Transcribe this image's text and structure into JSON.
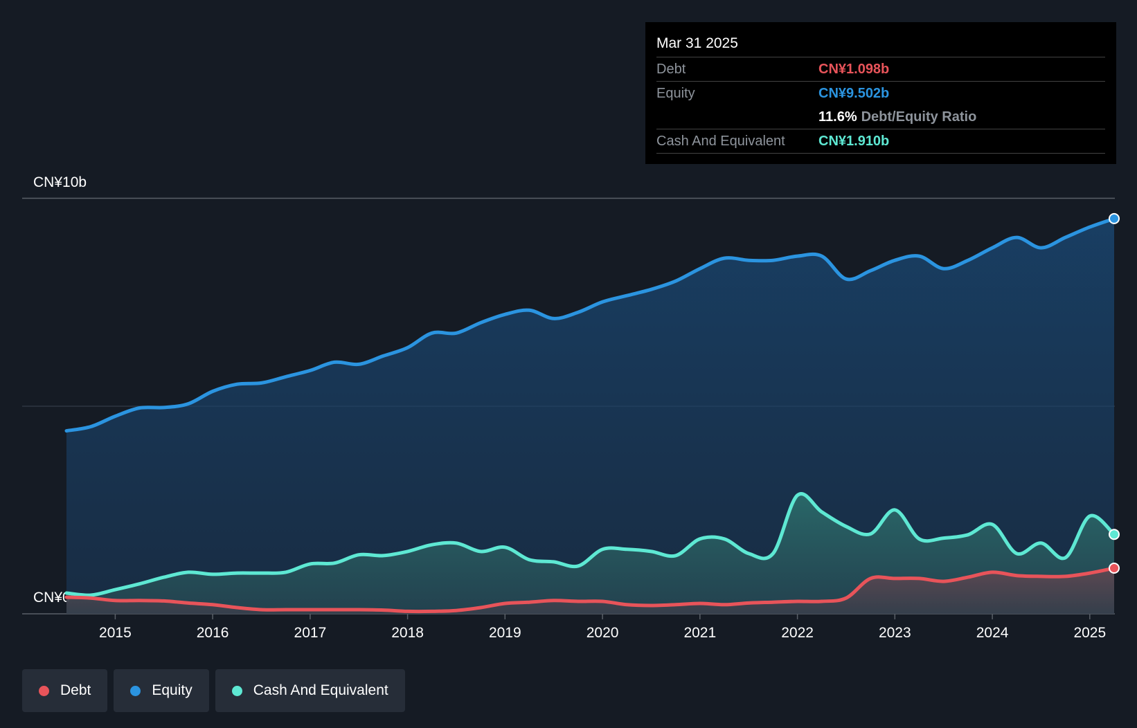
{
  "chart_data": {
    "type": "area",
    "y_axis": {
      "top_label": "CN¥10b",
      "bottom_label": "CN¥0",
      "ylim": [
        0,
        10
      ]
    },
    "x_ticks": [
      "2015",
      "2016",
      "2017",
      "2018",
      "2019",
      "2020",
      "2021",
      "2022",
      "2023",
      "2024",
      "2025"
    ],
    "tick_years": [
      2015,
      2016,
      2017,
      2018,
      2019,
      2020,
      2021,
      2022,
      2023,
      2024,
      2025
    ],
    "xlim": [
      2014.5,
      2025.25
    ],
    "series": [
      {
        "name": "Equity",
        "color": "#2b94e0",
        "points": [
          [
            2014.5,
            4.4
          ],
          [
            2014.75,
            4.5
          ],
          [
            2015.0,
            4.75
          ],
          [
            2015.25,
            4.95
          ],
          [
            2015.5,
            4.96
          ],
          [
            2015.75,
            5.05
          ],
          [
            2016.0,
            5.35
          ],
          [
            2016.25,
            5.52
          ],
          [
            2016.5,
            5.55
          ],
          [
            2016.75,
            5.7
          ],
          [
            2017.0,
            5.85
          ],
          [
            2017.25,
            6.05
          ],
          [
            2017.5,
            6.0
          ],
          [
            2017.75,
            6.2
          ],
          [
            2018.0,
            6.4
          ],
          [
            2018.25,
            6.75
          ],
          [
            2018.5,
            6.75
          ],
          [
            2018.75,
            7.0
          ],
          [
            2019.0,
            7.2
          ],
          [
            2019.25,
            7.3
          ],
          [
            2019.5,
            7.1
          ],
          [
            2019.75,
            7.25
          ],
          [
            2020.0,
            7.5
          ],
          [
            2020.25,
            7.65
          ],
          [
            2020.5,
            7.8
          ],
          [
            2020.75,
            8.0
          ],
          [
            2021.0,
            8.3
          ],
          [
            2021.25,
            8.55
          ],
          [
            2021.5,
            8.5
          ],
          [
            2021.75,
            8.5
          ],
          [
            2022.0,
            8.6
          ],
          [
            2022.25,
            8.6
          ],
          [
            2022.5,
            8.05
          ],
          [
            2022.75,
            8.25
          ],
          [
            2023.0,
            8.5
          ],
          [
            2023.25,
            8.6
          ],
          [
            2023.5,
            8.3
          ],
          [
            2023.75,
            8.5
          ],
          [
            2024.0,
            8.8
          ],
          [
            2024.25,
            9.05
          ],
          [
            2024.5,
            8.8
          ],
          [
            2024.75,
            9.05
          ],
          [
            2025.0,
            9.3
          ],
          [
            2025.25,
            9.502
          ]
        ]
      },
      {
        "name": "Cash And Equivalent",
        "color": "#5ee8d3",
        "points": [
          [
            2014.5,
            0.5
          ],
          [
            2014.75,
            0.45
          ],
          [
            2015.0,
            0.58
          ],
          [
            2015.25,
            0.72
          ],
          [
            2015.5,
            0.88
          ],
          [
            2015.75,
            1.0
          ],
          [
            2016.0,
            0.95
          ],
          [
            2016.25,
            0.98
          ],
          [
            2016.5,
            0.98
          ],
          [
            2016.75,
            1.0
          ],
          [
            2017.0,
            1.2
          ],
          [
            2017.25,
            1.22
          ],
          [
            2017.5,
            1.42
          ],
          [
            2017.75,
            1.4
          ],
          [
            2018.0,
            1.5
          ],
          [
            2018.25,
            1.66
          ],
          [
            2018.5,
            1.7
          ],
          [
            2018.75,
            1.5
          ],
          [
            2019.0,
            1.6
          ],
          [
            2019.25,
            1.3
          ],
          [
            2019.5,
            1.25
          ],
          [
            2019.75,
            1.15
          ],
          [
            2020.0,
            1.55
          ],
          [
            2020.25,
            1.55
          ],
          [
            2020.5,
            1.5
          ],
          [
            2020.75,
            1.4
          ],
          [
            2021.0,
            1.8
          ],
          [
            2021.25,
            1.8
          ],
          [
            2021.5,
            1.45
          ],
          [
            2021.75,
            1.45
          ],
          [
            2022.0,
            2.85
          ],
          [
            2022.25,
            2.45
          ],
          [
            2022.5,
            2.1
          ],
          [
            2022.75,
            1.92
          ],
          [
            2023.0,
            2.5
          ],
          [
            2023.25,
            1.8
          ],
          [
            2023.5,
            1.82
          ],
          [
            2023.75,
            1.9
          ],
          [
            2024.0,
            2.15
          ],
          [
            2024.25,
            1.45
          ],
          [
            2024.5,
            1.7
          ],
          [
            2024.75,
            1.35
          ],
          [
            2025.0,
            2.35
          ],
          [
            2025.25,
            1.91
          ]
        ]
      },
      {
        "name": "Debt",
        "color": "#e8545a",
        "points": [
          [
            2014.5,
            0.4
          ],
          [
            2014.75,
            0.38
          ],
          [
            2015.0,
            0.32
          ],
          [
            2015.25,
            0.32
          ],
          [
            2015.5,
            0.31
          ],
          [
            2015.75,
            0.26
          ],
          [
            2016.0,
            0.22
          ],
          [
            2016.25,
            0.15
          ],
          [
            2016.5,
            0.1
          ],
          [
            2016.75,
            0.1
          ],
          [
            2017.0,
            0.1
          ],
          [
            2017.25,
            0.1
          ],
          [
            2017.5,
            0.1
          ],
          [
            2017.75,
            0.09
          ],
          [
            2018.0,
            0.06
          ],
          [
            2018.25,
            0.06
          ],
          [
            2018.5,
            0.08
          ],
          [
            2018.75,
            0.15
          ],
          [
            2019.0,
            0.25
          ],
          [
            2019.25,
            0.28
          ],
          [
            2019.5,
            0.32
          ],
          [
            2019.75,
            0.3
          ],
          [
            2020.0,
            0.3
          ],
          [
            2020.25,
            0.22
          ],
          [
            2020.5,
            0.2
          ],
          [
            2020.75,
            0.22
          ],
          [
            2021.0,
            0.25
          ],
          [
            2021.25,
            0.22
          ],
          [
            2021.5,
            0.26
          ],
          [
            2021.75,
            0.28
          ],
          [
            2022.0,
            0.3
          ],
          [
            2022.25,
            0.3
          ],
          [
            2022.5,
            0.38
          ],
          [
            2022.75,
            0.85
          ],
          [
            2023.0,
            0.85
          ],
          [
            2023.25,
            0.85
          ],
          [
            2023.5,
            0.78
          ],
          [
            2023.75,
            0.88
          ],
          [
            2024.0,
            1.0
          ],
          [
            2024.25,
            0.92
          ],
          [
            2024.5,
            0.9
          ],
          [
            2024.75,
            0.9
          ],
          [
            2025.0,
            0.98
          ],
          [
            2025.25,
            1.098
          ]
        ]
      }
    ]
  },
  "tooltip": {
    "date": "Mar 31 2025",
    "debt_label": "Debt",
    "debt_value": "CN¥1.098b",
    "equity_label": "Equity",
    "equity_value": "CN¥9.502b",
    "ratio_value": "11.6%",
    "ratio_label": "Debt/Equity Ratio",
    "cash_label": "Cash And Equivalent",
    "cash_value": "CN¥1.910b"
  },
  "legend": [
    {
      "label": "Debt",
      "color": "#e8545a"
    },
    {
      "label": "Equity",
      "color": "#2b94e0"
    },
    {
      "label": "Cash And Equivalent",
      "color": "#5ee8d3"
    }
  ],
  "colors": {
    "debt": "#e8545a",
    "equity": "#2b94e0",
    "cash": "#5ee8d3"
  }
}
